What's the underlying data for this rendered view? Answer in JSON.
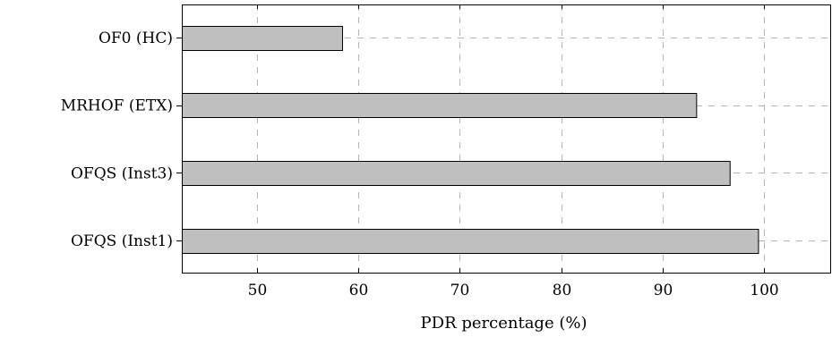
{
  "chart_data": {
    "type": "bar",
    "orientation": "horizontal",
    "categories": [
      "OF0 (HC)",
      "MRHOF (ETX)",
      "OFQS (Inst3)",
      "OFQS (Inst1)"
    ],
    "values": [
      58.4,
      93.3,
      96.6,
      99.4
    ],
    "xlabel": "PDR percentage (%)",
    "ylabel": "",
    "xlim": [
      42.6,
      106.6
    ],
    "xticks": [
      50,
      60,
      70,
      80,
      90,
      100
    ],
    "grid": true,
    "bar_color": "#bfbfbf",
    "bar_edge_color": "#000000",
    "grid_color": "#b3b3b3"
  }
}
